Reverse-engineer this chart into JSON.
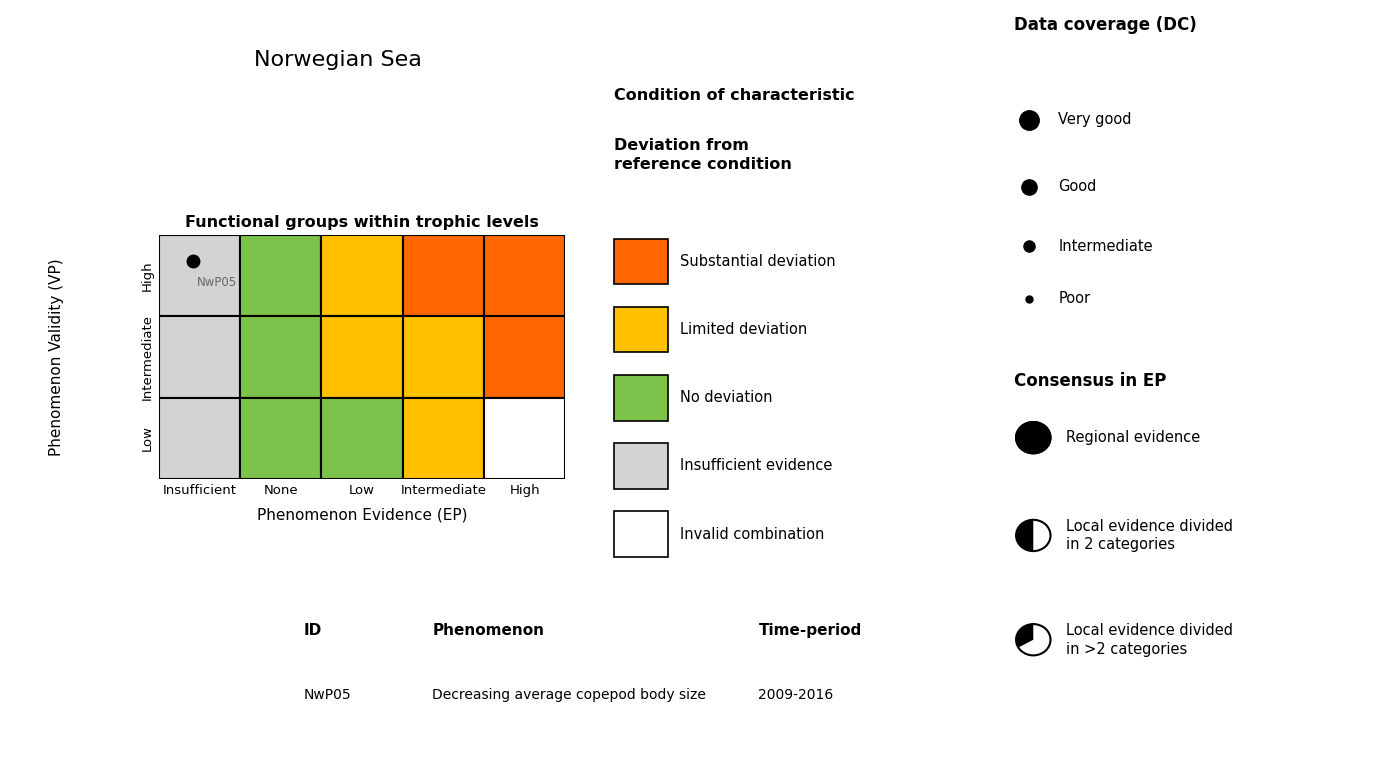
{
  "title": "Norwegian Sea",
  "subtitle": "Functional groups within trophic levels",
  "xlabel": "Phenomenon Evidence (EP)",
  "ylabel": "Phenomenon Validity (VP)",
  "x_labels": [
    "Insufficient",
    "None",
    "Low",
    "Intermediate",
    "High"
  ],
  "y_labels_rotated": "Low Intermediate High",
  "grid_colors": [
    [
      "#d3d3d3",
      "#7dc24b",
      "#ffc000",
      "#ff6600",
      "#ff6600"
    ],
    [
      "#d3d3d3",
      "#7dc24b",
      "#ffc000",
      "#ffc000",
      "#ff6600"
    ],
    [
      "#d3d3d3",
      "#7dc24b",
      "#7dc24b",
      "#ffc000",
      "#ffffff"
    ]
  ],
  "indicator_col": 0,
  "indicator_row": 0,
  "indicator_label": "NwP05",
  "legend_title": "Condition of characteristic",
  "legend_subtitle": "Deviation from\nreference condition",
  "legend_items": [
    {
      "color": "#ff6600",
      "label": "Substantial deviation"
    },
    {
      "color": "#ffc000",
      "label": "Limited deviation"
    },
    {
      "color": "#7dc24b",
      "label": "No deviation"
    },
    {
      "color": "#d3d3d3",
      "label": "Insufficient evidence"
    },
    {
      "color": "#ffffff",
      "label": "Invalid combination"
    }
  ],
  "dc_title": "Data coverage (DC)",
  "dc_items": [
    {
      "size": 14,
      "label": "Very good"
    },
    {
      "size": 11,
      "label": "Good"
    },
    {
      "size": 8,
      "label": "Intermediate"
    },
    {
      "size": 5,
      "label": "Poor"
    }
  ],
  "consensus_title": "Consensus in EP",
  "consensus_items": [
    {
      "type": "full",
      "label": "Regional evidence"
    },
    {
      "type": "half",
      "label": "Local evidence divided\nin 2 categories"
    },
    {
      "type": "quarter",
      "label": "Local evidence divided\nin >2 categories"
    }
  ],
  "table_headers": [
    "ID",
    "Phenomenon",
    "Time-period"
  ],
  "table_rows": [
    [
      "NwP05",
      "Decreasing average copepod body size",
      "2009-2016"
    ]
  ],
  "background_color": "#ffffff"
}
